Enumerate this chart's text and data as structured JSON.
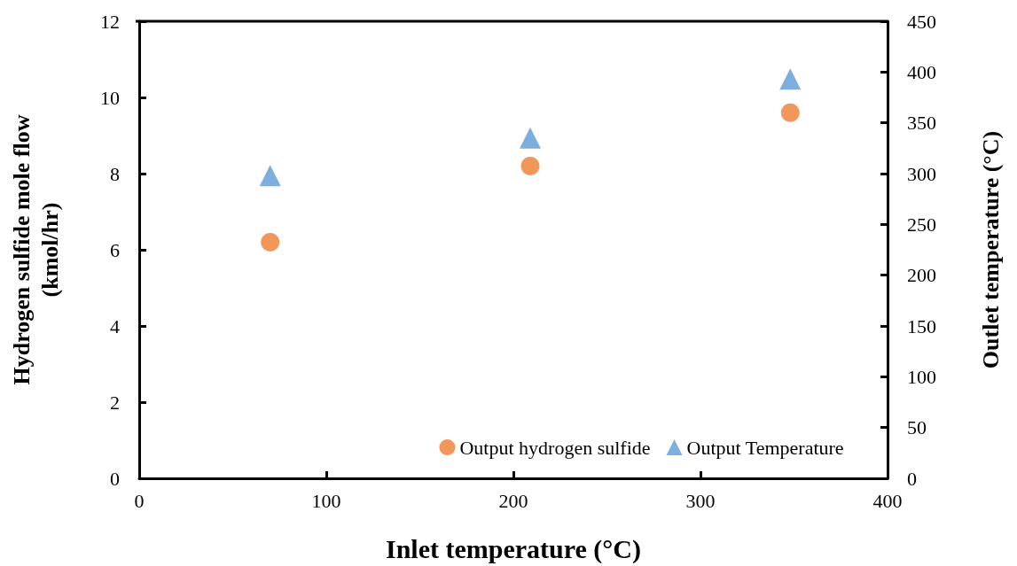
{
  "chart_data": {
    "type": "scatter",
    "xlabel": "Inlet temperature (°C)",
    "ylabel": "Hydrogen sulfide mole flow\n(kmol/hr)",
    "y2label": "Outlet temperature (°C)",
    "x": [
      70,
      209,
      348
    ],
    "series": [
      {
        "name": "Output hydrogen sulfide",
        "color": "#ed7d31",
        "marker": "circle",
        "values": [
          6.2,
          8.2,
          9.6
        ]
      },
      {
        "name": "Output Temperature",
        "color": "#5b9bd5",
        "marker": "triangle",
        "axis": "y2",
        "values": [
          298,
          335,
          393
        ]
      }
    ],
    "xlim": [
      0,
      400
    ],
    "xticks": [
      0,
      100,
      200,
      300,
      400
    ],
    "ylim": [
      0,
      12
    ],
    "yticks": [
      0,
      2,
      4,
      6,
      8,
      10,
      12
    ],
    "y2lim": [
      0,
      450
    ],
    "y2ticks": [
      0,
      50,
      100,
      150,
      200,
      250,
      300,
      350,
      400,
      450
    ],
    "grid": false,
    "legend": "bottom right"
  }
}
